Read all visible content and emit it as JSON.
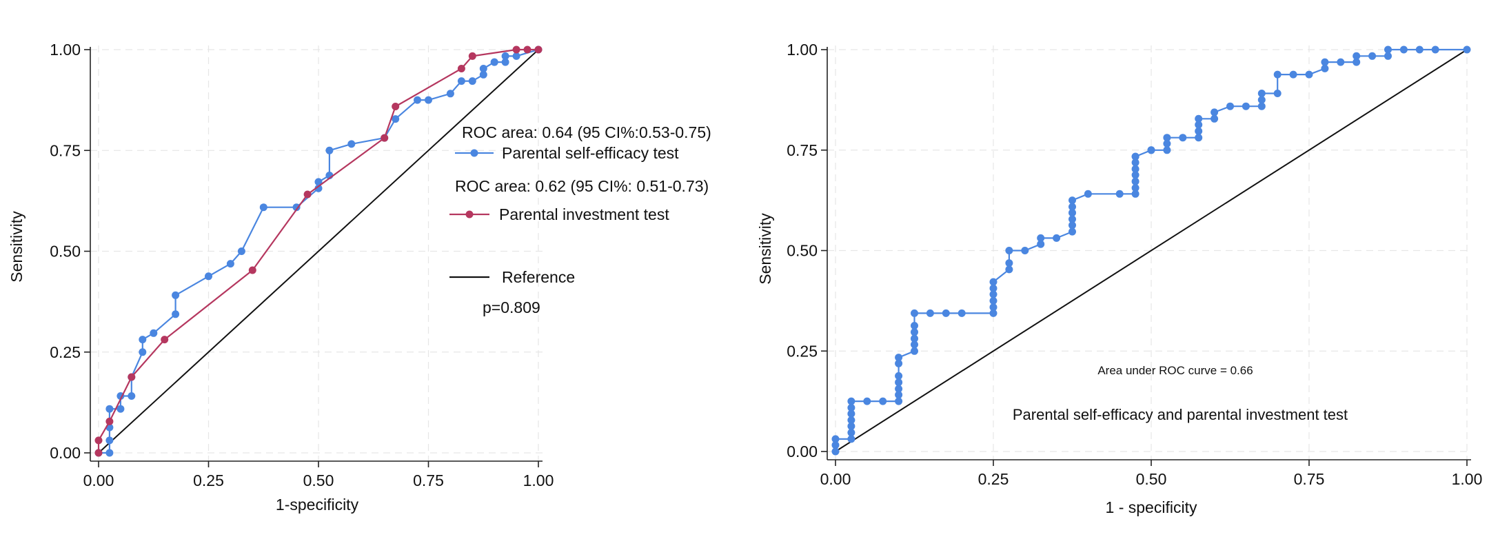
{
  "chart_data": [
    {
      "type": "line",
      "xlabel": "1-specificity",
      "ylabel": "Sensitivity",
      "xlim": [
        0,
        1
      ],
      "ylim": [
        0,
        1
      ],
      "xticks": [
        "0.00",
        "0.25",
        "0.50",
        "0.75",
        "1.00"
      ],
      "yticks": [
        "0.00",
        "0.25",
        "0.50",
        "0.75",
        "1.00"
      ],
      "grid": true,
      "series": [
        {
          "name": "Parental self-efficacy test",
          "color": "#4a86e0",
          "markers": true,
          "x": [
            0,
            0.025,
            0.025,
            0.025,
            0.025,
            0.05,
            0.05,
            0.075,
            0.075,
            0.1,
            0.1,
            0.125,
            0.175,
            0.175,
            0.25,
            0.3,
            0.325,
            0.375,
            0.45,
            0.5,
            0.5,
            0.525,
            0.525,
            0.575,
            0.65,
            0.675,
            0.725,
            0.75,
            0.8,
            0.825,
            0.85,
            0.875,
            0.875,
            0.9,
            0.9,
            0.925,
            0.925,
            0.95,
            1.0
          ],
          "y": [
            0,
            0,
            0.031,
            0.063,
            0.109,
            0.109,
            0.141,
            0.141,
            0.188,
            0.25,
            0.281,
            0.297,
            0.344,
            0.391,
            0.438,
            0.469,
            0.5,
            0.609,
            0.609,
            0.656,
            0.672,
            0.688,
            0.75,
            0.766,
            0.781,
            0.828,
            0.875,
            0.875,
            0.891,
            0.922,
            0.922,
            0.938,
            0.953,
            0.969,
            0.969,
            0.969,
            0.984,
            0.984,
            1.0
          ]
        },
        {
          "name": "Parental investment test",
          "color": "#b5375f",
          "markers": true,
          "x": [
            0,
            0,
            0.025,
            0.075,
            0.15,
            0.35,
            0.475,
            0.65,
            0.675,
            0.825,
            0.85,
            0.95,
            0.975,
            1.0
          ],
          "y": [
            0,
            0.031,
            0.078,
            0.188,
            0.281,
            0.453,
            0.641,
            0.781,
            0.859,
            0.953,
            0.984,
            1.0,
            1.0,
            1.0
          ]
        },
        {
          "name": "Reference",
          "color": "#111111",
          "markers": false,
          "x": [
            0,
            1
          ],
          "y": [
            0,
            1
          ]
        }
      ],
      "annotations": {
        "roc1": "ROC area: 0.64 (95 CI%:0.53-0.75)",
        "roc2": "ROC area: 0.62 (95 CI%: 0.51-0.73)",
        "pvalue": "p=0.809"
      }
    },
    {
      "type": "line",
      "xlabel": "1 - specificity",
      "ylabel": "Sensitivity",
      "xlim": [
        0,
        1
      ],
      "ylim": [
        0,
        1
      ],
      "xticks": [
        "0.00",
        "0.25",
        "0.50",
        "0.75",
        "1.00"
      ],
      "yticks": [
        "0.00",
        "0.25",
        "0.50",
        "0.75",
        "1.00"
      ],
      "grid": true,
      "series": [
        {
          "name": "",
          "color": "#4a86e0",
          "markers": true,
          "x": [
            0,
            0,
            0,
            0.025,
            0.025,
            0.025,
            0.025,
            0.025,
            0.025,
            0.025,
            0.05,
            0.075,
            0.1,
            0.1,
            0.1,
            0.1,
            0.1,
            0.1,
            0.1,
            0.125,
            0.125,
            0.125,
            0.125,
            0.125,
            0.125,
            0.15,
            0.175,
            0.2,
            0.25,
            0.25,
            0.25,
            0.25,
            0.25,
            0.25,
            0.275,
            0.275,
            0.275,
            0.3,
            0.325,
            0.325,
            0.35,
            0.375,
            0.375,
            0.375,
            0.375,
            0.375,
            0.375,
            0.4,
            0.45,
            0.475,
            0.475,
            0.475,
            0.475,
            0.475,
            0.475,
            0.475,
            0.475,
            0.5,
            0.5,
            0.525,
            0.525,
            0.525,
            0.55,
            0.575,
            0.575,
            0.575,
            0.575,
            0.6,
            0.6,
            0.625,
            0.65,
            0.675,
            0.675,
            0.675,
            0.7,
            0.7,
            0.725,
            0.75,
            0.775,
            0.775,
            0.8,
            0.825,
            0.825,
            0.85,
            0.875,
            0.875,
            0.9,
            0.925,
            0.95,
            1.0
          ],
          "y": [
            0,
            0.016,
            0.031,
            0.031,
            0.047,
            0.063,
            0.078,
            0.094,
            0.109,
            0.125,
            0.125,
            0.125,
            0.125,
            0.141,
            0.156,
            0.172,
            0.188,
            0.219,
            0.234,
            0.25,
            0.266,
            0.281,
            0.297,
            0.313,
            0.344,
            0.344,
            0.344,
            0.344,
            0.344,
            0.359,
            0.375,
            0.391,
            0.406,
            0.422,
            0.453,
            0.469,
            0.5,
            0.5,
            0.516,
            0.531,
            0.531,
            0.547,
            0.563,
            0.578,
            0.594,
            0.609,
            0.625,
            0.641,
            0.641,
            0.641,
            0.656,
            0.672,
            0.688,
            0.703,
            0.719,
            0.734,
            0.734,
            0.75,
            0.75,
            0.75,
            0.766,
            0.781,
            0.781,
            0.781,
            0.797,
            0.813,
            0.828,
            0.828,
            0.844,
            0.859,
            0.859,
            0.859,
            0.875,
            0.891,
            0.891,
            0.938,
            0.938,
            0.938,
            0.953,
            0.969,
            0.969,
            0.969,
            0.984,
            0.984,
            0.984,
            1.0,
            1.0,
            1.0,
            1.0,
            1.0
          ]
        },
        {
          "name": "",
          "color": "#111111",
          "markers": false,
          "x": [
            0,
            1
          ],
          "y": [
            0,
            1
          ]
        }
      ],
      "annotations": {
        "auc": "Area under ROC curve = 0.66",
        "label": "Parental self-efficacy and parental investment test"
      }
    }
  ]
}
